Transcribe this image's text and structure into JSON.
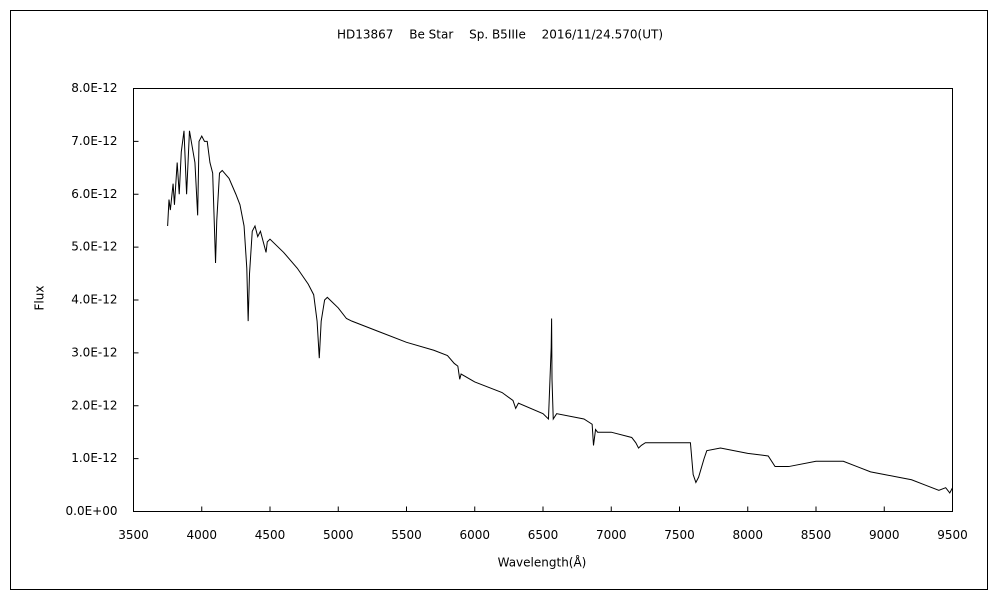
{
  "chart_data": {
    "type": "line",
    "title": "HD13867　 Be Star　 Sp. B5IIIe　 2016/11/24.570(UT)",
    "xlabel": "Wavelength(Å)",
    "ylabel": "Flux",
    "x": [
      3750,
      3760,
      3770,
      3790,
      3800,
      3820,
      3835,
      3850,
      3870,
      3889,
      3910,
      3930,
      3950,
      3970,
      3980,
      4000,
      4020,
      4040,
      4060,
      4080,
      4095,
      4101,
      4110,
      4130,
      4150,
      4200,
      4250,
      4280,
      4310,
      4330,
      4340,
      4350,
      4370,
      4390,
      4410,
      4430,
      4471,
      4480,
      4500,
      4600,
      4700,
      4780,
      4820,
      4845,
      4861,
      4875,
      4900,
      4920,
      5000,
      5060,
      5100,
      5300,
      5500,
      5700,
      5800,
      5850,
      5876,
      5890,
      5900,
      6000,
      6200,
      6280,
      6300,
      6320,
      6500,
      6540,
      6560,
      6563,
      6566,
      6575,
      6600,
      6800,
      6860,
      6870,
      6885,
      6900,
      7000,
      7150,
      7180,
      7200,
      7220,
      7250,
      7400,
      7580,
      7600,
      7620,
      7640,
      7680,
      7700,
      7800,
      8000,
      8150,
      8200,
      8300,
      8500,
      8700,
      8800,
      8900,
      9000,
      9100,
      9200,
      9300,
      9400,
      9450,
      9480,
      9500
    ],
    "series": [
      {
        "name": "Flux",
        "color": "#000000",
        "values": [
          5.4e-12,
          5.9e-12,
          5.7e-12,
          6.2e-12,
          5.8e-12,
          6.6e-12,
          6e-12,
          6.8e-12,
          7.2e-12,
          6e-12,
          7.2e-12,
          6.9e-12,
          6.6e-12,
          5.6e-12,
          7e-12,
          7.1e-12,
          7e-12,
          7e-12,
          6.6e-12,
          6.4e-12,
          5.2e-12,
          4.7e-12,
          5.5e-12,
          6.4e-12,
          6.45e-12,
          6.3e-12,
          6e-12,
          5.8e-12,
          5.4e-12,
          4.6e-12,
          3.6e-12,
          4.5e-12,
          5.3e-12,
          5.4e-12,
          5.2e-12,
          5.3e-12,
          4.9e-12,
          5.1e-12,
          5.15e-12,
          4.9e-12,
          4.6e-12,
          4.3e-12,
          4.1e-12,
          3.6e-12,
          2.9e-12,
          3.6e-12,
          4e-12,
          4.05e-12,
          3.85e-12,
          3.65e-12,
          3.6e-12,
          3.4e-12,
          3.2e-12,
          3.05e-12,
          2.95e-12,
          2.8e-12,
          2.75e-12,
          2.5e-12,
          2.6e-12,
          2.45e-12,
          2.25e-12,
          2.1e-12,
          1.95e-12,
          2.05e-12,
          1.85e-12,
          1.75e-12,
          3.1e-12,
          3.65e-12,
          2.5e-12,
          1.75e-12,
          1.85e-12,
          1.75e-12,
          1.65e-12,
          1.25e-12,
          1.55e-12,
          1.5e-12,
          1.5e-12,
          1.4e-12,
          1.3e-12,
          1.2e-12,
          1.25e-12,
          1.3e-12,
          1.3e-12,
          1.3e-12,
          7e-13,
          5.5e-13,
          6.5e-13,
          1e-12,
          1.15e-12,
          1.2e-12,
          1.1e-12,
          1.05e-12,
          8.5e-13,
          8.5e-13,
          9.5e-13,
          9.5e-13,
          8.5e-13,
          7.5e-13,
          7e-13,
          6.5e-13,
          6e-13,
          5e-13,
          4e-13,
          4.5e-13,
          3.5e-13,
          4.5e-13
        ]
      }
    ],
    "xlim": [
      3500,
      9500
    ],
    "xticks": [
      3500,
      4000,
      4500,
      5000,
      5500,
      6000,
      6500,
      7000,
      7500,
      8000,
      8500,
      9000,
      9500
    ],
    "ylim": [
      0,
      8e-12
    ],
    "yticks": [
      {
        "value": 0,
        "label": "0.0E+00"
      },
      {
        "value": 1e-12,
        "label": "1.0E-12"
      },
      {
        "value": 2e-12,
        "label": "2.0E-12"
      },
      {
        "value": 3e-12,
        "label": "3.0E-12"
      },
      {
        "value": 4e-12,
        "label": "4.0E-12"
      },
      {
        "value": 5e-12,
        "label": "5.0E-12"
      },
      {
        "value": 6e-12,
        "label": "6.0E-12"
      },
      {
        "value": 7e-12,
        "label": "7.0E-12"
      },
      {
        "value": 8e-12,
        "label": "8.0E-12"
      }
    ],
    "grid": false
  }
}
